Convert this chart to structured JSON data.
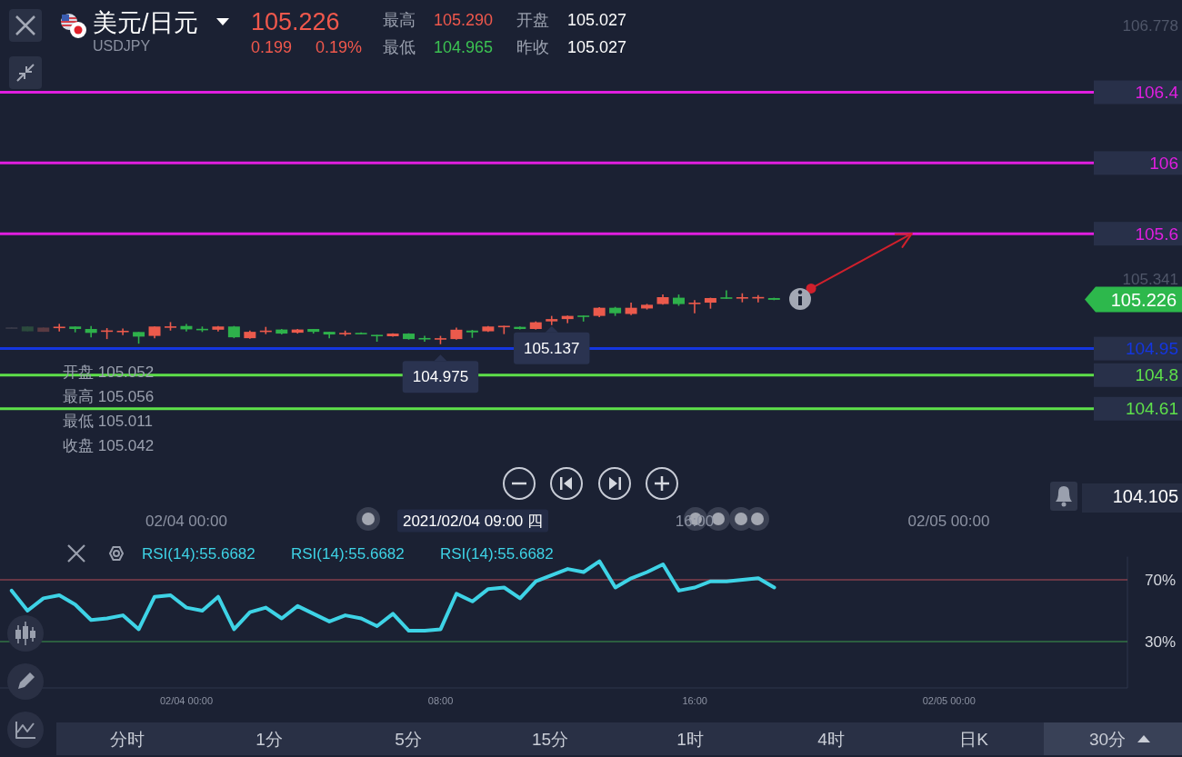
{
  "chart_data": [
    {
      "type": "candlestick",
      "title": "美元/日元",
      "subtitle": "USDJPY",
      "x": [
        "2021-02-03T18:30",
        "2021-02-03T19:00",
        "2021-02-03T19:30",
        "2021-02-03T20:00",
        "2021-02-03T20:30",
        "2021-02-03T21:00",
        "2021-02-03T21:30",
        "2021-02-03T22:00",
        "2021-02-03T22:30",
        "2021-02-03T23:00",
        "2021-02-03T23:30",
        "2021-02-04T00:00",
        "2021-02-04T00:30",
        "2021-02-04T01:00",
        "2021-02-04T01:30",
        "2021-02-04T02:00",
        "2021-02-04T02:30",
        "2021-02-04T03:00",
        "2021-02-04T03:30",
        "2021-02-04T04:00",
        "2021-02-04T04:30",
        "2021-02-04T05:00",
        "2021-02-04T05:30",
        "2021-02-04T06:00",
        "2021-02-04T06:30",
        "2021-02-04T07:00",
        "2021-02-04T07:30",
        "2021-02-04T08:00",
        "2021-02-04T08:30",
        "2021-02-04T09:00",
        "2021-02-04T09:30",
        "2021-02-04T10:00",
        "2021-02-04T10:30",
        "2021-02-04T11:00",
        "2021-02-04T11:30",
        "2021-02-04T12:00",
        "2021-02-04T12:30",
        "2021-02-04T13:00",
        "2021-02-04T13:30",
        "2021-02-04T14:00",
        "2021-02-04T14:30",
        "2021-02-04T15:00",
        "2021-02-04T15:30",
        "2021-02-04T16:00",
        "2021-02-04T16:30",
        "2021-02-04T17:00",
        "2021-02-04T17:30",
        "2021-02-04T18:00",
        "2021-02-04T18:30"
      ],
      "ohlc": [
        [
          105.07,
          105.071,
          105.067,
          105.068
        ],
        [
          105.075,
          105.075,
          105.048,
          105.048
        ],
        [
          105.045,
          105.069,
          105.045,
          105.069
        ],
        [
          105.072,
          105.09,
          105.047,
          105.074
        ],
        [
          105.075,
          105.075,
          105.042,
          105.061
        ],
        [
          105.061,
          105.078,
          105.014,
          105.039
        ],
        [
          105.05,
          105.066,
          105.004,
          105.053
        ],
        [
          105.049,
          105.064,
          105.027,
          105.051
        ],
        [
          105.044,
          105.044,
          104.978,
          105.018
        ],
        [
          105.022,
          105.075,
          105.009,
          105.075
        ],
        [
          105.073,
          105.1,
          105.052,
          105.076
        ],
        [
          105.078,
          105.09,
          105.047,
          105.059
        ],
        [
          105.062,
          105.075,
          105.044,
          105.059
        ],
        [
          105.057,
          105.078,
          105.047,
          105.075
        ],
        [
          105.075,
          105.078,
          105.009,
          105.014
        ],
        [
          105.009,
          105.052,
          105.006,
          105.045
        ],
        [
          105.049,
          105.073,
          105.032,
          105.052
        ],
        [
          105.058,
          105.061,
          105.03,
          105.035
        ],
        [
          105.04,
          105.061,
          105.035,
          105.058
        ],
        [
          105.061,
          105.061,
          105.035,
          105.045
        ],
        [
          105.045,
          105.045,
          105.009,
          105.03
        ],
        [
          105.037,
          105.052,
          105.022,
          105.039
        ],
        [
          105.039,
          105.042,
          105.032,
          105.035
        ],
        [
          105.028,
          105.028,
          104.989,
          105.02
        ],
        [
          105.02,
          105.037,
          105.018,
          105.035
        ],
        [
          105.035,
          105.037,
          105.001,
          105.004
        ],
        [
          105.01,
          105.022,
          104.989,
          105.006
        ],
        [
          105.006,
          105.022,
          104.975,
          105.009
        ],
        [
          105.004,
          105.069,
          105.001,
          105.057
        ],
        [
          105.052,
          105.056,
          105.011,
          105.042
        ],
        [
          105.048,
          105.078,
          105.045,
          105.075
        ],
        [
          105.076,
          105.079,
          105.032,
          105.079
        ],
        [
          105.073,
          105.075,
          105.059,
          105.061
        ],
        [
          105.061,
          105.104,
          105.058,
          105.099
        ],
        [
          105.104,
          105.135,
          105.083,
          105.117
        ],
        [
          105.117,
          105.137,
          105.094,
          105.135
        ],
        [
          105.137,
          105.137,
          105.103,
          105.134
        ],
        [
          105.135,
          105.184,
          105.128,
          105.181
        ],
        [
          105.181,
          105.186,
          105.135,
          105.15
        ],
        [
          105.146,
          105.21,
          105.14,
          105.181
        ],
        [
          105.177,
          105.203,
          105.171,
          105.198
        ],
        [
          105.202,
          105.256,
          105.198,
          105.241
        ],
        [
          105.238,
          105.256,
          105.192,
          105.202
        ],
        [
          105.202,
          105.224,
          105.15,
          105.21
        ],
        [
          105.21,
          105.238,
          105.176,
          105.236
        ],
        [
          105.24,
          105.279,
          105.232,
          105.236
        ],
        [
          105.238,
          105.263,
          105.212,
          105.241
        ],
        [
          105.24,
          105.253,
          105.212,
          105.242
        ],
        [
          105.236,
          105.238,
          105.224,
          105.226
        ]
      ],
      "colors": [
        "#3a3b4a",
        "#2b4a3d",
        "#5a3a42",
        "#eb5a4c",
        "#2eb14b",
        "#2eb14b",
        "#eb5a4c",
        "#eb5a4c",
        "#2eb14b",
        "#eb5a4c",
        "#eb5a4c",
        "#2eb14b",
        "#2eb14b",
        "#eb5a4c",
        "#2eb14b",
        "#eb5a4c",
        "#eb5a4c",
        "#2eb14b",
        "#eb5a4c",
        "#2eb14b",
        "#2eb14b",
        "#eb5a4c",
        "#2eb14b",
        "#2eb14b",
        "#eb5a4c",
        "#2eb14b",
        "#2eb14b",
        "#eb5a4c",
        "#eb5a4c",
        "#2eb14b",
        "#eb5a4c",
        "#eb5a4c",
        "#2eb14b",
        "#eb5a4c",
        "#eb5a4c",
        "#eb5a4c",
        "#2eb14b",
        "#eb5a4c",
        "#2eb14b",
        "#eb5a4c",
        "#eb5a4c",
        "#eb5a4c",
        "#2eb14b",
        "#eb5a4c",
        "#eb5a4c",
        "#2eb14b",
        "#eb5a4c",
        "#eb5a4c",
        "#2eb14b"
      ],
      "series": [
        {
          "type": "line",
          "x": [
            "2021-02-04T19:40",
            "2021-02-04T22:50"
          ],
          "values": [
            105.29,
            105.6
          ],
          "color": "#d0202c"
        }
      ],
      "xlim": [
        "2021-02-03T18:08",
        "2021-02-05T04:34"
      ],
      "ylim": [
        104.105,
        106.778
      ],
      "xticks": [
        {
          "value": "2021-02-04T00:00",
          "label": "02/04 00:00"
        },
        {
          "value": "2021-02-04T16:00",
          "label": "16:00"
        },
        {
          "value": "2021-02-05T00:00",
          "label": "02/05 00:00"
        }
      ],
      "yticks": [
        104.105,
        105.341,
        106.778
      ],
      "ref_lines": [
        {
          "axis": "y",
          "value": 106.4,
          "label": "106.4",
          "color": "#e01ee0"
        },
        {
          "axis": "y",
          "value": 106,
          "label": "106",
          "color": "#e01ee0"
        },
        {
          "axis": "y",
          "value": 105.6,
          "label": "105.6",
          "color": "#e01ee0"
        },
        {
          "axis": "y",
          "value": 104.95,
          "label": "104.95",
          "color": "#1436e0"
        },
        {
          "axis": "y",
          "value": 104.8,
          "label": "104.8",
          "color": "#5ee04a"
        },
        {
          "axis": "y",
          "value": 104.61,
          "label": "104.61",
          "color": "#5ee04a"
        }
      ],
      "annotations": [
        "105.226",
        "0.199",
        "0.19%",
        "最高",
        "105.290",
        "最低",
        "104.965",
        "开盘",
        "105.027",
        "昨收",
        "105.027",
        {
          "text": "105.137",
          "x": "2021-02-04T11:30",
          "y": 105.137
        },
        {
          "text": "104.975",
          "x": "2021-02-04T08:00",
          "y": 104.975
        },
        "105.226",
        "开盘 105.052",
        "最高 105.056",
        "最低 105.011",
        "收盘 105.042",
        "2021/02/04 09:00 四"
      ]
    },
    {
      "type": "line",
      "x": [
        "2021-02-03T18:30",
        "2021-02-03T19:00",
        "2021-02-03T19:30",
        "2021-02-03T20:00",
        "2021-02-03T20:30",
        "2021-02-03T21:00",
        "2021-02-03T21:30",
        "2021-02-03T22:00",
        "2021-02-03T22:30",
        "2021-02-03T23:00",
        "2021-02-03T23:30",
        "2021-02-04T00:00",
        "2021-02-04T00:30",
        "2021-02-04T01:00",
        "2021-02-04T01:30",
        "2021-02-04T02:00",
        "2021-02-04T02:30",
        "2021-02-04T03:00",
        "2021-02-04T03:30",
        "2021-02-04T04:00",
        "2021-02-04T04:30",
        "2021-02-04T05:00",
        "2021-02-04T05:30",
        "2021-02-04T06:00",
        "2021-02-04T06:30",
        "2021-02-04T07:00",
        "2021-02-04T07:30",
        "2021-02-04T08:00",
        "2021-02-04T08:30",
        "2021-02-04T09:00",
        "2021-02-04T09:30",
        "2021-02-04T10:00",
        "2021-02-04T10:30",
        "2021-02-04T11:00",
        "2021-02-04T11:30",
        "2021-02-04T12:00",
        "2021-02-04T12:30",
        "2021-02-04T13:00",
        "2021-02-04T13:30",
        "2021-02-04T14:00",
        "2021-02-04T14:30",
        "2021-02-04T15:00",
        "2021-02-04T15:30",
        "2021-02-04T16:00",
        "2021-02-04T16:30",
        "2021-02-04T17:00",
        "2021-02-04T17:30",
        "2021-02-04T18:00",
        "2021-02-04T18:30"
      ],
      "values": [
        63,
        50,
        58,
        60,
        54,
        44,
        45,
        47,
        38,
        59,
        60,
        52,
        50,
        59,
        38,
        49,
        52,
        45,
        53,
        48,
        43,
        47,
        45,
        40,
        48,
        37,
        37,
        38,
        61,
        56,
        64,
        65,
        58,
        69,
        73,
        77,
        75,
        82,
        65,
        71,
        75,
        80,
        63,
        65,
        69,
        69,
        70,
        71,
        65
      ],
      "color": "#3ed3e6",
      "xlim": [
        "2021-02-03T18:08",
        "2021-02-05T05:37"
      ],
      "ylim": [
        0,
        85
      ],
      "xticks": [
        {
          "value": "2021-02-04T00:00",
          "label": "02/04 00:00"
        },
        {
          "value": "2021-02-04T08:00",
          "label": "08:00"
        },
        {
          "value": "2021-02-04T16:00",
          "label": "16:00"
        },
        {
          "value": "2021-02-05T00:00",
          "label": "02/05 00:00"
        }
      ],
      "yticks": [
        {
          "value": 30,
          "label": "30%"
        },
        {
          "value": 70,
          "label": "70%"
        }
      ],
      "ref_lines": [
        {
          "axis": "y",
          "value": 70,
          "color": "#b54e58"
        },
        {
          "axis": "y",
          "value": 30,
          "color": "#3e9c4c"
        }
      ],
      "annotations": [
        "RSI(14):55.6682",
        "RSI(14):55.6682",
        "RSI(14):55.6682",
        "分时",
        "1分",
        "5分",
        "15分",
        "1时",
        "4时",
        "日K",
        "30分"
      ]
    }
  ]
}
